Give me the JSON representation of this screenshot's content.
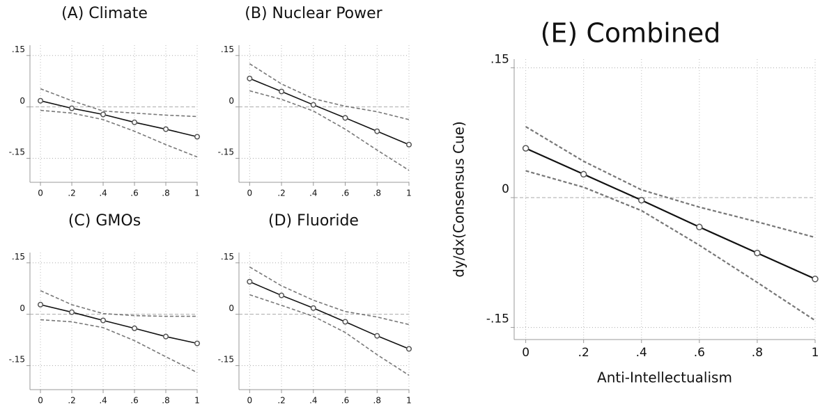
{
  "chart_data": [
    {
      "type": "line",
      "title": "(A) Climate",
      "x": [
        0,
        0.2,
        0.4,
        0.6,
        0.8,
        1
      ],
      "series": [
        {
          "color": "#111111",
          "dash": false,
          "marker": true,
          "values": [
            0.018,
            -0.004,
            -0.022,
            -0.045,
            -0.065,
            -0.087
          ]
        },
        {
          "color": "#777777",
          "dash": true,
          "marker": false,
          "values": [
            0.053,
            0.018,
            -0.012,
            -0.018,
            -0.024,
            -0.028
          ]
        },
        {
          "color": "#777777",
          "dash": true,
          "marker": false,
          "values": [
            -0.01,
            -0.018,
            -0.037,
            -0.071,
            -0.11,
            -0.146
          ]
        }
      ],
      "xlim": [
        -0.067,
        1
      ],
      "ylim": [
        -0.22,
        0.18
      ],
      "xticks": [
        0,
        {
          "value": 0.2,
          "label": ".2"
        },
        {
          "value": 0.4,
          "label": ".4"
        },
        {
          "value": 0.6,
          "label": ".6"
        },
        {
          "value": 0.8,
          "label": ".8"
        },
        1
      ],
      "yticks": [
        {
          "value": -0.15,
          "label": "-.15"
        },
        0,
        {
          "value": 0.15,
          "label": ".15"
        }
      ],
      "grid": true
    },
    {
      "type": "line",
      "title": "(B) Nuclear Power",
      "x": [
        0,
        0.2,
        0.4,
        0.6,
        0.8,
        1
      ],
      "series": [
        {
          "color": "#111111",
          "dash": false,
          "marker": true,
          "values": [
            0.083,
            0.045,
            0.006,
            -0.032,
            -0.071,
            -0.11
          ]
        },
        {
          "color": "#777777",
          "dash": true,
          "marker": false,
          "values": [
            0.126,
            0.067,
            0.024,
            0.002,
            -0.014,
            -0.037
          ]
        },
        {
          "color": "#777777",
          "dash": true,
          "marker": false,
          "values": [
            0.047,
            0.022,
            -0.012,
            -0.065,
            -0.126,
            -0.185
          ]
        }
      ],
      "xlim": [
        -0.067,
        1
      ],
      "ylim": [
        -0.22,
        0.18
      ],
      "xticks": [
        0,
        {
          "value": 0.2,
          "label": ".2"
        },
        {
          "value": 0.4,
          "label": ".4"
        },
        {
          "value": 0.6,
          "label": ".6"
        },
        {
          "value": 0.8,
          "label": ".8"
        },
        1
      ],
      "yticks": [
        {
          "value": -0.15,
          "label": "-.15"
        },
        0,
        {
          "value": 0.15,
          "label": ".15"
        }
      ],
      "grid": true
    },
    {
      "type": "line",
      "title": "(C) GMOs",
      "x": [
        0,
        0.2,
        0.4,
        0.6,
        0.8,
        1
      ],
      "series": [
        {
          "color": "#111111",
          "dash": false,
          "marker": true,
          "values": [
            0.028,
            0.006,
            -0.018,
            -0.041,
            -0.065,
            -0.085
          ]
        },
        {
          "color": "#777777",
          "dash": true,
          "marker": false,
          "values": [
            0.069,
            0.028,
            0.002,
            -0.004,
            -0.006,
            -0.006
          ]
        },
        {
          "color": "#777777",
          "dash": true,
          "marker": false,
          "values": [
            -0.016,
            -0.022,
            -0.039,
            -0.077,
            -0.124,
            -0.17
          ]
        }
      ],
      "xlim": [
        -0.067,
        1
      ],
      "ylim": [
        -0.22,
        0.18
      ],
      "xticks": [
        0,
        {
          "value": 0.2,
          "label": ".2"
        },
        {
          "value": 0.4,
          "label": ".4"
        },
        {
          "value": 0.6,
          "label": ".6"
        },
        {
          "value": 0.8,
          "label": ".8"
        },
        1
      ],
      "yticks": [
        {
          "value": -0.15,
          "label": "-.15"
        },
        0,
        {
          "value": 0.15,
          "label": ".15"
        }
      ],
      "grid": true
    },
    {
      "type": "line",
      "title": "(D) Fluoride",
      "x": [
        0,
        0.2,
        0.4,
        0.6,
        0.8,
        1
      ],
      "series": [
        {
          "color": "#111111",
          "dash": false,
          "marker": true,
          "values": [
            0.095,
            0.055,
            0.018,
            -0.022,
            -0.063,
            -0.101
          ]
        },
        {
          "color": "#777777",
          "dash": true,
          "marker": false,
          "values": [
            0.138,
            0.083,
            0.041,
            0.008,
            -0.008,
            -0.03
          ]
        },
        {
          "color": "#777777",
          "dash": true,
          "marker": false,
          "values": [
            0.057,
            0.026,
            -0.006,
            -0.053,
            -0.118,
            -0.178
          ]
        }
      ],
      "xlim": [
        -0.067,
        1
      ],
      "ylim": [
        -0.22,
        0.18
      ],
      "xticks": [
        0,
        {
          "value": 0.2,
          "label": ".2"
        },
        {
          "value": 0.4,
          "label": ".4"
        },
        {
          "value": 0.6,
          "label": ".6"
        },
        {
          "value": 0.8,
          "label": ".8"
        },
        1
      ],
      "yticks": [
        {
          "value": -0.15,
          "label": "-.15"
        },
        0,
        {
          "value": 0.15,
          "label": ".15"
        }
      ],
      "grid": true
    },
    {
      "type": "line",
      "title": "(E) Combined",
      "xlabel": "Anti-Intellectualism",
      "ylabel": "dy/dx(Consensus Cue)",
      "x": [
        0,
        0.2,
        0.4,
        0.6,
        0.8,
        1
      ],
      "series": [
        {
          "color": "#111111",
          "dash": false,
          "marker": true,
          "values": [
            0.057,
            0.027,
            -0.003,
            -0.034,
            -0.064,
            -0.094
          ]
        },
        {
          "color": "#777777",
          "dash": true,
          "marker": false,
          "values": [
            0.082,
            0.042,
            0.009,
            -0.011,
            -0.028,
            -0.046
          ]
        },
        {
          "color": "#777777",
          "dash": true,
          "marker": false,
          "values": [
            0.031,
            0.012,
            -0.015,
            -0.055,
            -0.098,
            -0.142
          ]
        }
      ],
      "xlim": [
        -0.04,
        1
      ],
      "ylim": [
        -0.164,
        0.16
      ],
      "xticks": [
        0,
        {
          "value": 0.2,
          "label": ".2"
        },
        {
          "value": 0.4,
          "label": ".4"
        },
        {
          "value": 0.6,
          "label": ".6"
        },
        {
          "value": 0.8,
          "label": ".8"
        },
        1
      ],
      "yticks": [
        {
          "value": -0.15,
          "label": "-.15"
        },
        0,
        {
          "value": 0.15,
          "label": ".15"
        }
      ],
      "grid": true
    }
  ]
}
